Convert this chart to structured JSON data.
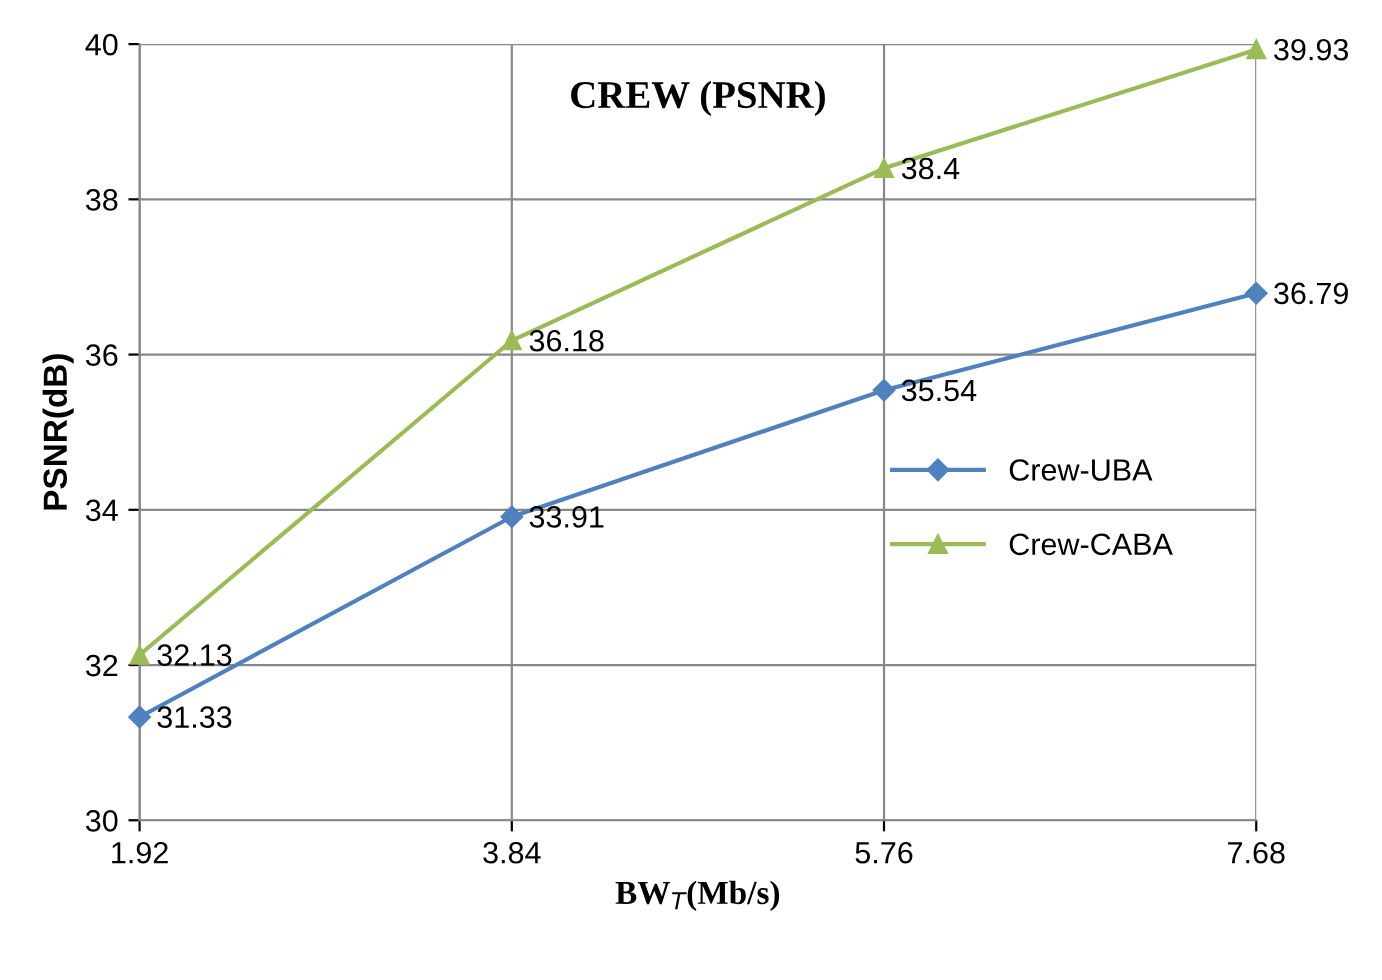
{
  "chart_data": {
    "type": "line",
    "title": "CREW (PSNR)",
    "xlabel": "BW$_{T}$(Mb/s)",
    "ylabel": "PSNR(dB)",
    "x": [
      1.92,
      3.84,
      5.76,
      7.68
    ],
    "series": [
      {
        "name": "Crew-UBA",
        "color": "#4f81bd",
        "marker": "diamond",
        "values": [
          31.33,
          33.91,
          35.54,
          36.79
        ]
      },
      {
        "name": "Crew-CABA",
        "color": "#9bbb59",
        "marker": "triangle",
        "values": [
          32.13,
          36.18,
          38.4,
          39.93
        ]
      }
    ],
    "xlim": [
      1.92,
      7.68
    ],
    "xticks": [
      1.92,
      3.84,
      5.76,
      7.68
    ],
    "ylim": [
      30,
      40
    ],
    "yticks": [
      30,
      32,
      34,
      36,
      38,
      40
    ],
    "grid": true,
    "legend": "center right",
    "data_labels": true,
    "line_style": "solid"
  }
}
